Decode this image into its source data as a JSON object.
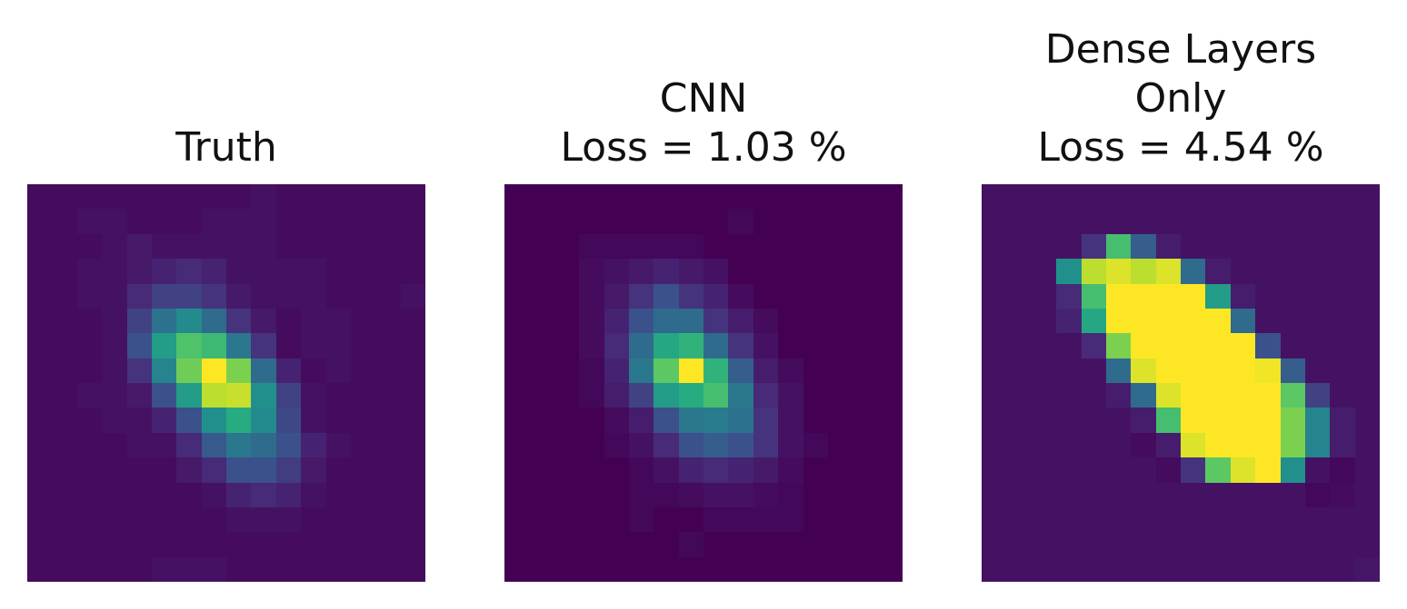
{
  "figure": {
    "panels": [
      {
        "title": "Truth"
      },
      {
        "title": "CNN\nLoss = 1.03 %"
      },
      {
        "title": "Dense Layers\nOnly\nLoss = 4.54 %"
      }
    ]
  },
  "chart_data": [
    {
      "type": "heatmap",
      "title": "Truth",
      "colormap": "viridis",
      "axes": "off",
      "grid": [
        [
          0.03,
          0.03,
          0.03,
          0.03,
          0.03,
          0.03,
          0.03,
          0.03,
          0.03,
          0.05,
          0.03,
          0.03,
          0.03,
          0.03,
          0.03,
          0.03
        ],
        [
          0.03,
          0.03,
          0.05,
          0.05,
          0.03,
          0.03,
          0.03,
          0.05,
          0.05,
          0.05,
          0.03,
          0.03,
          0.03,
          0.03,
          0.03,
          0.03
        ],
        [
          0.03,
          0.03,
          0.03,
          0.05,
          0.07,
          0.05,
          0.05,
          0.05,
          0.05,
          0.05,
          0.03,
          0.03,
          0.03,
          0.03,
          0.03,
          0.03
        ],
        [
          0.03,
          0.03,
          0.05,
          0.05,
          0.07,
          0.1,
          0.12,
          0.1,
          0.05,
          0.05,
          0.05,
          0.05,
          0.03,
          0.03,
          0.03,
          0.03
        ],
        [
          0.03,
          0.03,
          0.05,
          0.05,
          0.12,
          0.2,
          0.2,
          0.15,
          0.07,
          0.05,
          0.05,
          0.05,
          0.03,
          0.03,
          0.03,
          0.05
        ],
        [
          0.03,
          0.03,
          0.03,
          0.05,
          0.2,
          0.38,
          0.48,
          0.35,
          0.15,
          0.07,
          0.03,
          0.05,
          0.05,
          0.03,
          0.03,
          0.03
        ],
        [
          0.03,
          0.03,
          0.03,
          0.05,
          0.25,
          0.55,
          0.72,
          0.68,
          0.4,
          0.15,
          0.03,
          0.05,
          0.05,
          0.03,
          0.03,
          0.03
        ],
        [
          0.03,
          0.03,
          0.03,
          0.05,
          0.15,
          0.45,
          0.78,
          1.0,
          0.8,
          0.35,
          0.1,
          0.03,
          0.05,
          0.03,
          0.03,
          0.03
        ],
        [
          0.03,
          0.03,
          0.05,
          0.05,
          0.07,
          0.25,
          0.55,
          0.9,
          0.92,
          0.5,
          0.2,
          0.05,
          0.03,
          0.03,
          0.03,
          0.03
        ],
        [
          0.03,
          0.03,
          0.03,
          0.05,
          0.05,
          0.1,
          0.25,
          0.5,
          0.62,
          0.48,
          0.22,
          0.05,
          0.03,
          0.03,
          0.03,
          0.03
        ],
        [
          0.03,
          0.03,
          0.03,
          0.03,
          0.05,
          0.05,
          0.12,
          0.28,
          0.4,
          0.35,
          0.25,
          0.1,
          0.05,
          0.03,
          0.03,
          0.03
        ],
        [
          0.03,
          0.03,
          0.03,
          0.03,
          0.03,
          0.03,
          0.07,
          0.12,
          0.25,
          0.25,
          0.18,
          0.07,
          0.03,
          0.03,
          0.03,
          0.03
        ],
        [
          0.03,
          0.03,
          0.03,
          0.03,
          0.03,
          0.03,
          0.03,
          0.05,
          0.1,
          0.12,
          0.1,
          0.05,
          0.03,
          0.03,
          0.03,
          0.03
        ],
        [
          0.03,
          0.03,
          0.03,
          0.03,
          0.03,
          0.03,
          0.03,
          0.03,
          0.05,
          0.05,
          0.05,
          0.03,
          0.03,
          0.03,
          0.03,
          0.03
        ],
        [
          0.03,
          0.03,
          0.03,
          0.03,
          0.03,
          0.03,
          0.03,
          0.03,
          0.03,
          0.03,
          0.03,
          0.03,
          0.03,
          0.03,
          0.03,
          0.03
        ],
        [
          0.03,
          0.03,
          0.03,
          0.03,
          0.03,
          0.05,
          0.05,
          0.05,
          0.03,
          0.03,
          0.03,
          0.03,
          0.03,
          0.03,
          0.03,
          0.03
        ]
      ]
    },
    {
      "type": "heatmap",
      "title": "CNN\nLoss = 1.03 %",
      "colormap": "viridis",
      "axes": "off",
      "grid": [
        [
          0.0,
          0.0,
          0.0,
          0.0,
          0.0,
          0.0,
          0.0,
          0.0,
          0.0,
          0.0,
          0.0,
          0.0,
          0.0,
          0.0,
          0.0,
          0.0
        ],
        [
          0.0,
          0.0,
          0.0,
          0.0,
          0.0,
          0.0,
          0.0,
          0.0,
          0.0,
          0.02,
          0.0,
          0.0,
          0.0,
          0.0,
          0.0,
          0.0
        ],
        [
          0.0,
          0.0,
          0.0,
          0.02,
          0.02,
          0.02,
          0.02,
          0.02,
          0.0,
          0.0,
          0.0,
          0.0,
          0.0,
          0.0,
          0.0,
          0.0
        ],
        [
          0.0,
          0.0,
          0.0,
          0.03,
          0.05,
          0.07,
          0.1,
          0.07,
          0.05,
          0.0,
          0.0,
          0.0,
          0.0,
          0.0,
          0.0,
          0.0
        ],
        [
          0.0,
          0.0,
          0.0,
          0.03,
          0.07,
          0.15,
          0.25,
          0.15,
          0.1,
          0.03,
          0.0,
          0.0,
          0.0,
          0.0,
          0.0,
          0.0
        ],
        [
          0.0,
          0.0,
          0.0,
          0.03,
          0.1,
          0.25,
          0.35,
          0.35,
          0.15,
          0.08,
          0.03,
          0.0,
          0.0,
          0.0,
          0.0,
          0.0
        ],
        [
          0.0,
          0.0,
          0.0,
          0.03,
          0.12,
          0.35,
          0.6,
          0.65,
          0.35,
          0.15,
          0.05,
          0.0,
          0.0,
          0.0,
          0.0,
          0.0
        ],
        [
          0.0,
          0.0,
          0.0,
          0.02,
          0.1,
          0.4,
          0.75,
          1.0,
          0.65,
          0.3,
          0.08,
          0.03,
          0.0,
          0.0,
          0.0,
          0.0
        ],
        [
          0.0,
          0.0,
          0.0,
          0.02,
          0.08,
          0.2,
          0.55,
          0.62,
          0.7,
          0.4,
          0.12,
          0.05,
          0.0,
          0.0,
          0.0,
          0.0
        ],
        [
          0.0,
          0.0,
          0.0,
          0.0,
          0.03,
          0.08,
          0.25,
          0.4,
          0.42,
          0.38,
          0.15,
          0.05,
          0.0,
          0.0,
          0.0,
          0.0
        ],
        [
          0.0,
          0.0,
          0.0,
          0.0,
          0.02,
          0.05,
          0.12,
          0.25,
          0.3,
          0.25,
          0.15,
          0.05,
          0.02,
          0.0,
          0.0,
          0.0
        ],
        [
          0.0,
          0.0,
          0.0,
          0.0,
          0.0,
          0.02,
          0.05,
          0.1,
          0.12,
          0.1,
          0.07,
          0.03,
          0.0,
          0.0,
          0.0,
          0.0
        ],
        [
          0.0,
          0.0,
          0.0,
          0.0,
          0.0,
          0.02,
          0.02,
          0.03,
          0.05,
          0.05,
          0.03,
          0.02,
          0.0,
          0.0,
          0.0,
          0.0
        ],
        [
          0.0,
          0.0,
          0.0,
          0.0,
          0.0,
          0.02,
          0.0,
          0.0,
          0.02,
          0.02,
          0.02,
          0.02,
          0.0,
          0.0,
          0.0,
          0.0
        ],
        [
          0.0,
          0.0,
          0.0,
          0.0,
          0.0,
          0.0,
          0.0,
          0.02,
          0.0,
          0.0,
          0.0,
          0.0,
          0.0,
          0.0,
          0.0,
          0.0
        ],
        [
          0.0,
          0.0,
          0.0,
          0.0,
          0.0,
          0.0,
          0.0,
          0.0,
          0.0,
          0.0,
          0.0,
          0.0,
          0.0,
          0.0,
          0.0,
          0.0
        ]
      ]
    },
    {
      "type": "heatmap",
      "title": "Dense Layers\nOnly\nLoss = 4.54 %",
      "colormap": "viridis",
      "axes": "off",
      "grid": [
        [
          0.05,
          0.05,
          0.05,
          0.05,
          0.05,
          0.05,
          0.05,
          0.05,
          0.05,
          0.05,
          0.05,
          0.05,
          0.05,
          0.05,
          0.05,
          0.05
        ],
        [
          0.05,
          0.05,
          0.05,
          0.05,
          0.05,
          0.05,
          0.05,
          0.05,
          0.05,
          0.05,
          0.05,
          0.05,
          0.05,
          0.05,
          0.05,
          0.05
        ],
        [
          0.05,
          0.05,
          0.05,
          0.05,
          0.15,
          0.7,
          0.3,
          0.08,
          0.05,
          0.05,
          0.05,
          0.05,
          0.05,
          0.05,
          0.05,
          0.05
        ],
        [
          0.05,
          0.05,
          0.05,
          0.5,
          0.9,
          0.95,
          0.9,
          0.95,
          0.35,
          0.08,
          0.05,
          0.05,
          0.05,
          0.05,
          0.05,
          0.05
        ],
        [
          0.05,
          0.05,
          0.05,
          0.12,
          0.7,
          1.0,
          1.0,
          1.0,
          1.0,
          0.55,
          0.08,
          0.05,
          0.05,
          0.05,
          0.05,
          0.05
        ],
        [
          0.05,
          0.05,
          0.05,
          0.1,
          0.6,
          1.0,
          1.0,
          1.0,
          1.0,
          1.0,
          0.35,
          0.05,
          0.05,
          0.05,
          0.05,
          0.05
        ],
        [
          0.05,
          0.05,
          0.05,
          0.05,
          0.12,
          0.8,
          1.0,
          1.0,
          1.0,
          1.0,
          1.0,
          0.25,
          0.05,
          0.05,
          0.05,
          0.05
        ],
        [
          0.05,
          0.05,
          0.05,
          0.05,
          0.05,
          0.35,
          0.95,
          1.0,
          1.0,
          1.0,
          1.0,
          0.98,
          0.3,
          0.05,
          0.05,
          0.05
        ],
        [
          0.05,
          0.05,
          0.05,
          0.05,
          0.05,
          0.08,
          0.35,
          0.95,
          1.0,
          1.0,
          1.0,
          1.0,
          0.75,
          0.2,
          0.05,
          0.05
        ],
        [
          0.05,
          0.05,
          0.05,
          0.05,
          0.05,
          0.05,
          0.08,
          0.7,
          1.0,
          1.0,
          1.0,
          1.0,
          0.8,
          0.45,
          0.08,
          0.05
        ],
        [
          0.05,
          0.05,
          0.05,
          0.05,
          0.05,
          0.05,
          0.03,
          0.08,
          0.95,
          1.0,
          1.0,
          1.0,
          0.8,
          0.45,
          0.08,
          0.05
        ],
        [
          0.05,
          0.05,
          0.05,
          0.05,
          0.05,
          0.05,
          0.05,
          0.03,
          0.15,
          0.75,
          0.95,
          1.0,
          0.5,
          0.05,
          0.02,
          0.05
        ],
        [
          0.05,
          0.05,
          0.05,
          0.05,
          0.05,
          0.05,
          0.05,
          0.05,
          0.05,
          0.05,
          0.05,
          0.05,
          0.05,
          0.02,
          0.03,
          0.05
        ],
        [
          0.05,
          0.05,
          0.05,
          0.05,
          0.05,
          0.05,
          0.05,
          0.05,
          0.05,
          0.05,
          0.05,
          0.05,
          0.05,
          0.05,
          0.05,
          0.05
        ],
        [
          0.05,
          0.05,
          0.05,
          0.05,
          0.05,
          0.05,
          0.05,
          0.05,
          0.05,
          0.05,
          0.05,
          0.05,
          0.05,
          0.05,
          0.05,
          0.05
        ],
        [
          0.05,
          0.05,
          0.05,
          0.05,
          0.05,
          0.05,
          0.05,
          0.05,
          0.05,
          0.05,
          0.05,
          0.05,
          0.05,
          0.05,
          0.05,
          0.06
        ]
      ]
    }
  ]
}
